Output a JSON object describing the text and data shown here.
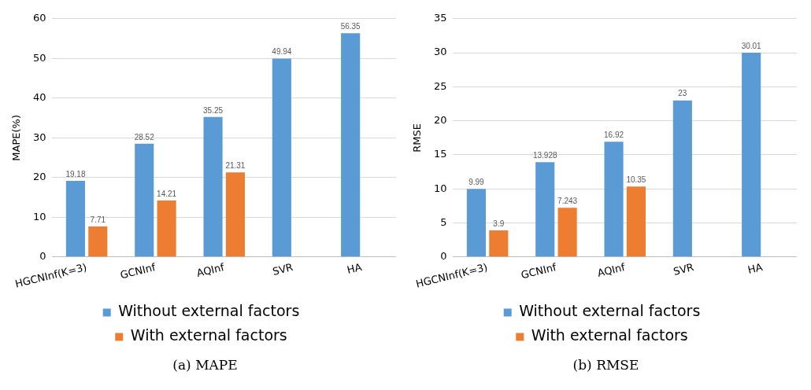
{
  "chart_data": [
    {
      "type": "bar",
      "ylabel": "MAPE(%)",
      "categories": [
        "HGCNInf(K=3)",
        "GCNInf",
        "AQInf",
        "SVR",
        "HA"
      ],
      "series": [
        {
          "name": "Without external factors",
          "color": "#5b9bd5",
          "values": [
            19.18,
            28.52,
            35.25,
            49.94,
            56.35
          ]
        },
        {
          "name": "With external factors",
          "color": "#ed7d31",
          "values": [
            7.71,
            14.21,
            21.31,
            null,
            null
          ]
        }
      ],
      "ylim": [
        0,
        60
      ],
      "yticks": [
        0,
        10,
        20,
        30,
        40,
        50,
        60
      ],
      "grid": "y",
      "legend": "bottom",
      "data_labels": true,
      "annotations": [
        "(a) MAPE"
      ]
    },
    {
      "type": "bar",
      "ylabel": "RMSE",
      "categories": [
        "HGCNInf(K=3)",
        "GCNInf",
        "AQInf",
        "SVR",
        "HA"
      ],
      "series": [
        {
          "name": "Without external factors",
          "color": "#5b9bd5",
          "values": [
            9.99,
            13.928,
            16.92,
            23,
            30.01
          ]
        },
        {
          "name": "With external factors",
          "color": "#ed7d31",
          "values": [
            3.9,
            7.243,
            10.35,
            null,
            null
          ]
        }
      ],
      "ylim": [
        0,
        35
      ],
      "yticks": [
        0,
        5,
        10,
        15,
        20,
        25,
        30,
        35
      ],
      "grid": "y",
      "legend": "bottom",
      "data_labels": true,
      "annotations": [
        "(b) RMSE"
      ]
    }
  ]
}
